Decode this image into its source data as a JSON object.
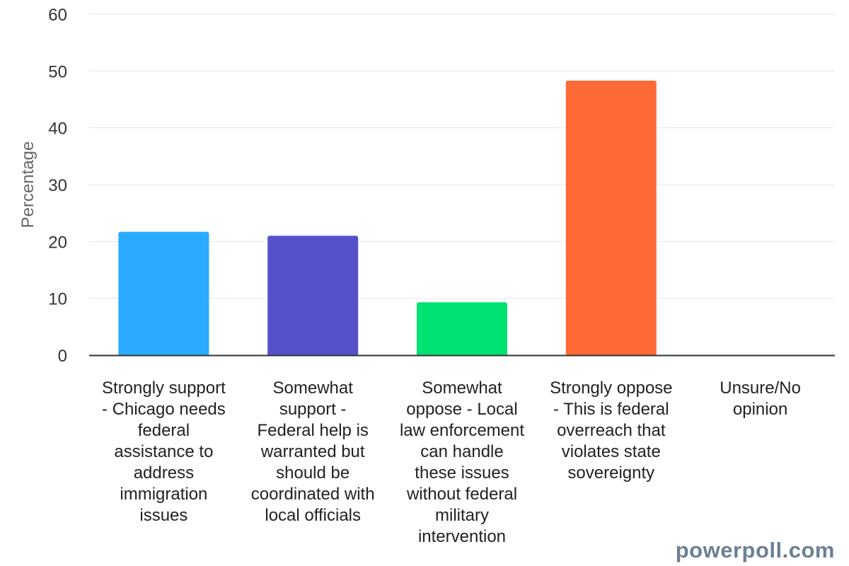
{
  "chart_data": {
    "type": "bar",
    "ylabel": "Percentage",
    "xlabel": "",
    "ylim": [
      0,
      60
    ],
    "yticks": [
      0,
      10,
      20,
      30,
      40,
      50,
      60
    ],
    "grid": true,
    "categories": [
      "Strongly support - Chicago needs federal assistance to address immigration issues",
      "Somewhat support - Federal help is warranted but should be coordinated with local officials",
      "Somewhat oppose - Local law enforcement can handle these issues without federal military intervention",
      "Strongly oppose - This is federal overreach that violates state sovereignty",
      "Unsure/No opinion"
    ],
    "category_label_lines": [
      [
        "Strongly support",
        "- Chicago needs",
        "federal",
        "assistance to",
        "address",
        "immigration",
        "issues"
      ],
      [
        "Somewhat",
        "support -",
        "Federal help is",
        "warranted but",
        "should be",
        "coordinated with",
        "local officials"
      ],
      [
        "Somewhat",
        "oppose - Local",
        "law enforcement",
        "can handle",
        "these issues",
        "without federal",
        "military",
        "intervention"
      ],
      [
        "Strongly oppose",
        "- This is federal",
        "overreach that",
        "violates state",
        "sovereignty"
      ],
      [
        "Unsure/No",
        "opinion"
      ]
    ],
    "values": [
      21.7,
      21.0,
      9.3,
      48.3,
      0
    ],
    "colors": [
      "#2aabff",
      "#5451c9",
      "#00e272",
      "#fe6a35",
      "#6b8abc"
    ]
  },
  "watermark": "powerpoll.com"
}
